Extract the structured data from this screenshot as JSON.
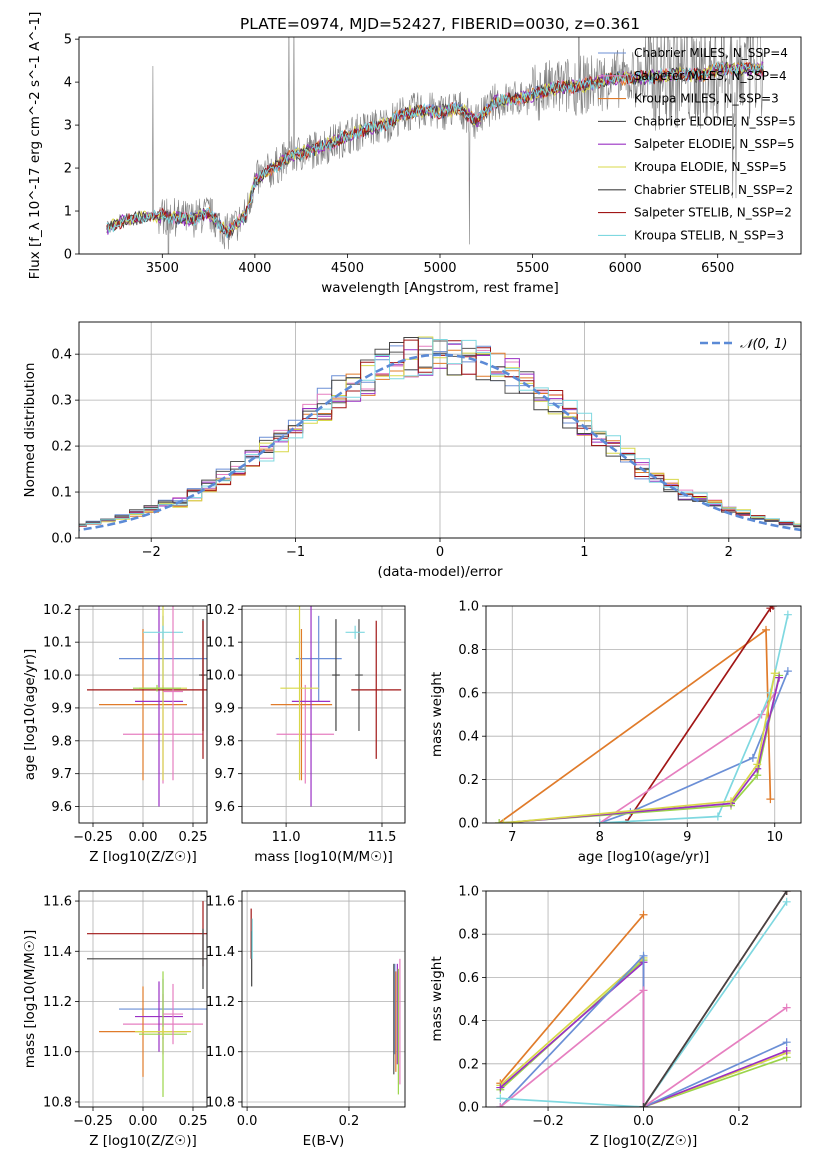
{
  "title": "PLATE=0974, MJD=52427, FIBERID=0030, z=0.361",
  "colors": {
    "Chabrier MILES": "#6b8fd6",
    "Salpeter MILES": "#e67fc0",
    "Kroupa MILES": "#e07b2a",
    "Chabrier ELODIE": "#555555",
    "Salpeter ELODIE": "#9a30c4",
    "Kroupa ELODIE": "#d8d84a",
    "Chabrier STELIB": "#444444",
    "Salpeter STELIB": "#a11616",
    "Kroupa STELIB": "#7fd8e0",
    "extra_green": "#9bd44a",
    "data": "#808080",
    "gaussian": "#5b8ad6"
  },
  "chart_data": [
    {
      "id": "spectrum",
      "type": "line",
      "title": "PLATE=0974, MJD=52427, FIBERID=0030, z=0.361",
      "xlabel": "wavelength [Angstrom, rest frame]",
      "ylabel": "Flux [f_λ 10^-17 erg cm^-2 s^-1 A^-1]",
      "xlim": [
        3050,
        6950
      ],
      "ylim": [
        0,
        5.05
      ],
      "xticks": [
        3500,
        4000,
        4500,
        5000,
        5500,
        6000,
        6500
      ],
      "yticks": [
        0,
        1,
        2,
        3,
        4,
        5
      ],
      "grid": false,
      "legend_position": "top-right",
      "legend": [
        "Chabrier MILES, N_SSP=4",
        "Salpeter MILES, N_SSP=4",
        "Kroupa MILES, N_SSP=3",
        "Chabrier ELODIE, N_SSP=5",
        "Salpeter ELODIE, N_SSP=5",
        "Kroupa ELODIE, N_SSP=5",
        "Chabrier STELIB, N_SSP=2",
        "Salpeter STELIB, N_SSP=2",
        "Kroupa STELIB, N_SSP=3"
      ],
      "continuum_points": [
        [
          3200,
          0.6
        ],
        [
          3300,
          0.8
        ],
        [
          3400,
          0.85
        ],
        [
          3500,
          0.9
        ],
        [
          3650,
          0.8
        ],
        [
          3750,
          0.95
        ],
        [
          3850,
          0.5
        ],
        [
          3950,
          0.9
        ],
        [
          4000,
          1.7
        ],
        [
          4100,
          2.0
        ],
        [
          4200,
          2.3
        ],
        [
          4300,
          2.4
        ],
        [
          4400,
          2.55
        ],
        [
          4500,
          2.75
        ],
        [
          4600,
          2.9
        ],
        [
          4700,
          3.0
        ],
        [
          4800,
          3.25
        ],
        [
          4900,
          3.35
        ],
        [
          5000,
          3.3
        ],
        [
          5100,
          3.4
        ],
        [
          5200,
          3.1
        ],
        [
          5300,
          3.55
        ],
        [
          5400,
          3.6
        ],
        [
          5500,
          3.7
        ],
        [
          5600,
          3.85
        ],
        [
          5700,
          3.9
        ],
        [
          5800,
          3.95
        ],
        [
          5900,
          4.05
        ],
        [
          6000,
          4.1
        ],
        [
          6100,
          4.1
        ],
        [
          6200,
          4.15
        ],
        [
          6300,
          4.2
        ],
        [
          6400,
          4.15
        ],
        [
          6500,
          4.3
        ],
        [
          6600,
          4.3
        ],
        [
          6750,
          4.3
        ]
      ]
    },
    {
      "id": "residuals",
      "type": "line",
      "xlabel": "(data-model)/error",
      "ylabel": "Normed distribution",
      "xlim": [
        -2.5,
        2.5
      ],
      "ylim": [
        0,
        0.47
      ],
      "xticks": [
        -2,
        -1,
        0,
        1,
        2
      ],
      "yticks": [
        0.0,
        0.1,
        0.2,
        0.3,
        0.4
      ],
      "grid": true,
      "legend_position": "top-right",
      "legend": [
        "𝒩(0, 1)"
      ],
      "gaussian": {
        "mean": 0,
        "sigma": 1
      },
      "bin_width": 0.1
    },
    {
      "id": "age_Z",
      "type": "scatter",
      "xlabel": "Z [log10(Z/Z☉)]",
      "ylabel": "age [log10(age/yr)]",
      "xlim": [
        -0.32,
        0.32
      ],
      "ylim": [
        9.55,
        10.21
      ],
      "xticks": [
        -0.25,
        0.0,
        0.25
      ],
      "yticks": [
        9.6,
        9.7,
        9.8,
        9.9,
        10.0,
        10.1,
        10.2
      ],
      "grid": true,
      "errorbars": [
        {
          "x": 0.1,
          "xerr": 0.22,
          "y": 10.05,
          "yerr": 0.13,
          "c": "Chabrier MILES"
        },
        {
          "x": 0.1,
          "xerr": 0.2,
          "y": 9.82,
          "yerr": 0.15,
          "c": "Salpeter MILES"
        },
        {
          "x": 0.0,
          "xerr": 0.22,
          "y": 9.91,
          "yerr": 0.23,
          "c": "Kroupa MILES"
        },
        {
          "x": 0.3,
          "xerr": 0.02,
          "y": 10.0,
          "yerr": 0.17,
          "c": "Chabrier ELODIE"
        },
        {
          "x": 0.08,
          "xerr": 0.12,
          "y": 9.92,
          "yerr": 0.32,
          "c": "Salpeter ELODIE"
        },
        {
          "x": 0.1,
          "xerr": 0.12,
          "y": 9.96,
          "yerr": 0.28,
          "c": "Kroupa ELODIE"
        },
        {
          "x": 0.3,
          "xerr": 0.01,
          "y": 10.0,
          "yerr": 0.17,
          "c": "Chabrier STELIB"
        },
        {
          "x": 0.3,
          "xerr": 0.58,
          "y": 9.955,
          "yerr": 0.21,
          "c": "Salpeter STELIB"
        },
        {
          "x": 0.1,
          "xerr": 0.1,
          "y": 10.13,
          "yerr": 0.02,
          "c": "Kroupa STELIB"
        },
        {
          "x": 0.15,
          "xerr": 0.05,
          "y": 9.95,
          "yerr": 0.27,
          "c": "Salpeter MILES"
        },
        {
          "x": 0.07,
          "xerr": 0.12,
          "y": 9.96,
          "yerr": 0.01,
          "c": "extra_green"
        }
      ]
    },
    {
      "id": "age_mass",
      "type": "scatter",
      "xlabel": "mass [log10(M/M☉)]",
      "ylabel": "",
      "xlim": [
        10.77,
        11.62
      ],
      "ylim": [
        9.55,
        10.21
      ],
      "xticks": [
        11.0,
        11.5
      ],
      "yticks": [
        9.6,
        9.7,
        9.8,
        9.9,
        10.0,
        10.1,
        10.2
      ],
      "grid": true,
      "errorbars": [
        {
          "x": 11.17,
          "xerr": 0.12,
          "y": 10.05,
          "yerr": 0.13,
          "c": "Chabrier MILES"
        },
        {
          "x": 11.1,
          "xerr": 0.15,
          "y": 9.82,
          "yerr": 0.15,
          "c": "Salpeter MILES"
        },
        {
          "x": 11.08,
          "xerr": 0.16,
          "y": 9.91,
          "yerr": 0.23,
          "c": "Kroupa MILES"
        },
        {
          "x": 11.38,
          "xerr": 0.02,
          "y": 10.0,
          "yerr": 0.17,
          "c": "Chabrier ELODIE"
        },
        {
          "x": 11.13,
          "xerr": 0.1,
          "y": 9.92,
          "yerr": 0.32,
          "c": "Salpeter ELODIE"
        },
        {
          "x": 11.07,
          "xerr": 0.1,
          "y": 9.96,
          "yerr": 0.28,
          "c": "Kroupa ELODIE"
        },
        {
          "x": 11.47,
          "xerr": 0.13,
          "y": 9.955,
          "yerr": 0.21,
          "c": "Salpeter STELIB"
        },
        {
          "x": 11.36,
          "xerr": 0.05,
          "y": 10.13,
          "yerr": 0.02,
          "c": "Kroupa STELIB"
        },
        {
          "x": 11.26,
          "xerr": 0.02,
          "y": 10.0,
          "yerr": 0.17,
          "c": "Chabrier STELIB"
        }
      ]
    },
    {
      "id": "cumulative_age",
      "type": "line",
      "xlabel": "age [log10(age/yr)]",
      "ylabel": "mass weight",
      "xlim": [
        6.7,
        10.3
      ],
      "ylim": [
        0,
        1
      ],
      "xticks": [
        7,
        8,
        9,
        10
      ],
      "yticks": [
        0.0,
        0.2,
        0.4,
        0.6,
        0.8,
        1.0
      ],
      "grid": true,
      "series": [
        {
          "c": "Kroupa MILES",
          "x": [
            6.85,
            9.9,
            9.95
          ],
          "y": [
            0.0,
            0.89,
            0.11
          ]
        },
        {
          "c": "Salpeter STELIB",
          "x": [
            8.3,
            9.95,
            9.98
          ],
          "y": [
            0.0,
            0.99,
            1.0
          ]
        },
        {
          "c": "Chabrier MILES",
          "x": [
            8.0,
            8.35,
            9.75,
            10.15
          ],
          "y": [
            0.0,
            0.05,
            0.3,
            0.7
          ]
        },
        {
          "c": "Salpeter MILES",
          "x": [
            8.0,
            9.85,
            10.0
          ],
          "y": [
            0.0,
            0.5,
            0.6
          ]
        },
        {
          "c": "Kroupa STELIB",
          "x": [
            8.0,
            9.35,
            9.95,
            10.15
          ],
          "y": [
            0.0,
            0.03,
            0.6,
            0.96
          ]
        },
        {
          "c": "extra_green",
          "x": [
            6.85,
            9.5,
            9.8,
            10.05
          ],
          "y": [
            0.0,
            0.08,
            0.22,
            0.68
          ]
        },
        {
          "c": "Salpeter ELODIE",
          "x": [
            6.9,
            9.5,
            9.8,
            10.05
          ],
          "y": [
            0.0,
            0.09,
            0.25,
            0.67
          ]
        },
        {
          "c": "Kroupa ELODIE",
          "x": [
            6.9,
            9.5,
            9.8,
            10.0
          ],
          "y": [
            0.0,
            0.1,
            0.27,
            0.69
          ]
        }
      ]
    },
    {
      "id": "mass_Z",
      "type": "scatter",
      "xlabel": "Z [log10(Z/Z☉)]",
      "ylabel": "mass [log10(M/M☉)]",
      "xlim": [
        -0.32,
        0.32
      ],
      "ylim": [
        10.78,
        11.64
      ],
      "xticks": [
        -0.25,
        0.0,
        0.25
      ],
      "yticks": [
        10.8,
        11.0,
        11.2,
        11.4,
        11.6
      ],
      "grid": true,
      "errorbars": [
        {
          "x": 0.3,
          "xerr": 0.58,
          "y": 11.47,
          "yerr": 0.13,
          "c": "Salpeter STELIB"
        },
        {
          "x": 0.3,
          "xerr": 0.58,
          "y": 11.37,
          "yerr": 0.12,
          "c": "Chabrier STELIB"
        },
        {
          "x": 0.1,
          "xerr": 0.22,
          "y": 11.17,
          "yerr": 0.12,
          "c": "Chabrier MILES"
        },
        {
          "x": 0.1,
          "xerr": 0.2,
          "y": 11.11,
          "yerr": 0.12,
          "c": "Salpeter MILES"
        },
        {
          "x": 0.0,
          "xerr": 0.22,
          "y": 11.08,
          "yerr": 0.18,
          "c": "Kroupa MILES"
        },
        {
          "x": 0.08,
          "xerr": 0.12,
          "y": 11.14,
          "yerr": 0.14,
          "c": "Salpeter ELODIE"
        },
        {
          "x": 0.1,
          "xerr": 0.12,
          "y": 11.07,
          "yerr": 0.25,
          "c": "extra_green"
        },
        {
          "x": 0.1,
          "xerr": 0.14,
          "y": 11.08,
          "yerr": 0.02,
          "c": "Kroupa ELODIE"
        },
        {
          "x": 0.15,
          "xerr": 0.05,
          "y": 11.15,
          "yerr": 0.12,
          "c": "Salpeter MILES"
        }
      ]
    },
    {
      "id": "mass_ebv",
      "type": "scatter",
      "xlabel": "E(B-V)",
      "ylabel": "",
      "xlim": [
        -0.01,
        0.31
      ],
      "ylim": [
        10.78,
        11.64
      ],
      "xticks": [
        0.0,
        0.2
      ],
      "yticks": [
        10.8,
        11.0,
        11.2,
        11.4,
        11.6
      ],
      "grid": true,
      "errorbars": [
        {
          "x": 0.008,
          "xerr": 0.0,
          "y": 11.47,
          "yerr": 0.1,
          "c": "Salpeter STELIB"
        },
        {
          "x": 0.009,
          "xerr": 0.0,
          "y": 11.37,
          "yerr": 0.11,
          "c": "Chabrier STELIB"
        },
        {
          "x": 0.01,
          "xerr": 0.0,
          "y": 11.45,
          "yerr": 0.08,
          "c": "Kroupa STELIB"
        },
        {
          "x": 0.29,
          "xerr": 0.0,
          "y": 11.17,
          "yerr": 0.18,
          "c": "Chabrier MILES"
        },
        {
          "x": 0.292,
          "xerr": 0.0,
          "y": 11.12,
          "yerr": 0.2,
          "c": "Kroupa MILES"
        },
        {
          "x": 0.295,
          "xerr": 0.0,
          "y": 11.15,
          "yerr": 0.2,
          "c": "Salpeter ELODIE"
        },
        {
          "x": 0.297,
          "xerr": 0.0,
          "y": 11.08,
          "yerr": 0.25,
          "c": "extra_green"
        },
        {
          "x": 0.3,
          "xerr": 0.0,
          "y": 11.12,
          "yerr": 0.25,
          "c": "Salpeter MILES"
        },
        {
          "x": 0.288,
          "xerr": 0.0,
          "y": 11.13,
          "yerr": 0.22,
          "c": "Chabrier ELODIE"
        }
      ]
    },
    {
      "id": "cumulative_Z",
      "type": "line",
      "xlabel": "Z [log10(Z/Z☉)]",
      "ylabel": "mass weight",
      "xlim": [
        -0.33,
        0.33
      ],
      "ylim": [
        0,
        1
      ],
      "xticks": [
        -0.2,
        0.0,
        0.2
      ],
      "yticks": [
        0.0,
        0.2,
        0.4,
        0.6,
        0.8,
        1.0
      ],
      "grid": true,
      "series": [
        {
          "c": "Kroupa MILES",
          "x": [
            -0.3,
            0.0
          ],
          "y": [
            0.11,
            0.89
          ]
        },
        {
          "c": "extra_green",
          "x": [
            -0.3,
            0.0,
            0.0,
            0.3
          ],
          "y": [
            0.08,
            0.68,
            0.0,
            0.23
          ]
        },
        {
          "c": "Kroupa ELODIE",
          "x": [
            -0.3,
            0.0,
            0.0,
            0.3
          ],
          "y": [
            0.1,
            0.69,
            0.0,
            0.25
          ]
        },
        {
          "c": "Salpeter ELODIE",
          "x": [
            -0.3,
            0.0,
            0.0,
            0.3
          ],
          "y": [
            0.09,
            0.67,
            0.0,
            0.26
          ]
        },
        {
          "c": "Chabrier MILES",
          "x": [
            -0.3,
            0.0,
            0.0,
            0.3
          ],
          "y": [
            0.0,
            0.7,
            0.0,
            0.3
          ]
        },
        {
          "c": "Salpeter MILES",
          "x": [
            -0.3,
            0.0,
            0.0,
            0.3
          ],
          "y": [
            0.0,
            0.54,
            0.0,
            0.46
          ]
        },
        {
          "c": "Kroupa STELIB",
          "x": [
            -0.3,
            0.0,
            0.3
          ],
          "y": [
            0.04,
            0.0,
            0.95
          ]
        },
        {
          "c": "Salpeter STELIB",
          "x": [
            0.0,
            0.3
          ],
          "y": [
            0.0,
            1.0
          ]
        },
        {
          "c": "Chabrier STELIB",
          "x": [
            0.0,
            0.3
          ],
          "y": [
            0.0,
            1.0
          ]
        }
      ]
    }
  ]
}
